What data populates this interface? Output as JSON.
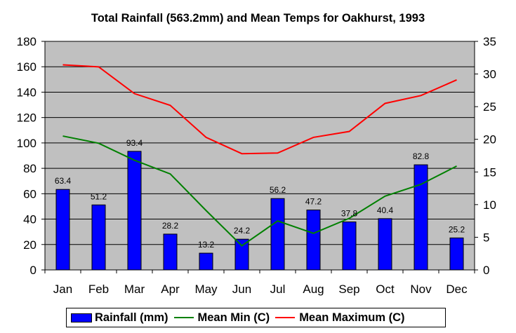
{
  "chart_data": {
    "type": "bar+line",
    "title": "Total Rainfall (563.2mm) and Mean Temps for Oakhurst, 1993",
    "categories": [
      "Jan",
      "Feb",
      "Mar",
      "Apr",
      "May",
      "Jun",
      "Jul",
      "Aug",
      "Sep",
      "Oct",
      "Nov",
      "Dec"
    ],
    "series": [
      {
        "name": "Rainfall (mm)",
        "type": "bar",
        "axis": "left",
        "color": "#0000ff",
        "values": [
          63.4,
          51.2,
          93.4,
          28.2,
          13.2,
          24.2,
          56.2,
          47.2,
          37.8,
          40.4,
          82.8,
          25.2
        ],
        "labels": [
          "63.4",
          "51.2",
          "93.4",
          "28.2",
          "13.2",
          "24.2",
          "56.2",
          "47.2",
          "37.8",
          "40.4",
          "82.8",
          "25.2"
        ]
      },
      {
        "name": "Mean Min (C)",
        "type": "line",
        "axis": "right",
        "color": "#008000",
        "values": [
          20.5,
          19.4,
          16.8,
          14.7,
          9.1,
          3.7,
          7.5,
          5.6,
          7.9,
          11.3,
          13.1,
          15.9
        ]
      },
      {
        "name": "Mean Maximum (C)",
        "type": "line",
        "axis": "right",
        "color": "#ff0000",
        "values": [
          31.4,
          31.1,
          27.0,
          25.2,
          20.3,
          17.8,
          17.9,
          20.3,
          21.2,
          25.5,
          26.7,
          29.1
        ]
      }
    ],
    "y_left": {
      "ylim": [
        0,
        180
      ],
      "ticks": [
        "0",
        "20",
        "40",
        "60",
        "80",
        "100",
        "120",
        "140",
        "160",
        "180"
      ]
    },
    "y_right": {
      "ylim": [
        0,
        35
      ],
      "ticks": [
        "0",
        "5",
        "10",
        "15",
        "20",
        "25",
        "30",
        "35"
      ]
    },
    "grid": true,
    "legend": "bottom",
    "plot_background": "#c0c0c0"
  }
}
